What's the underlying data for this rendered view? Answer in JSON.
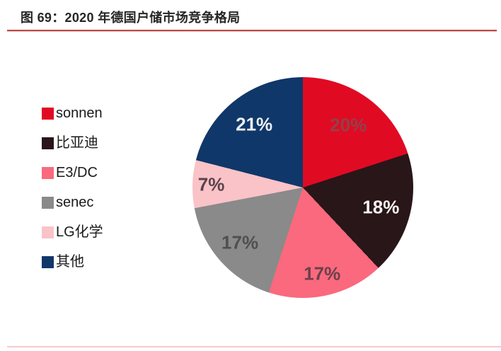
{
  "header": {
    "title": "图 69：2020 年德国户储市场竞争格局"
  },
  "colors": {
    "background": "#ffffff",
    "title_text": "#262626",
    "title_rule": "#bc4b46",
    "bottom_rule": "#f5caca",
    "legend_text": "#1a1a1a"
  },
  "chart_data": {
    "type": "pie",
    "title": "2020 年德国户储市场竞争格局",
    "start_angle_deg": 0,
    "direction": "clockwise",
    "legend_position": "left",
    "total": 100,
    "series": [
      {
        "name": "sonnen",
        "value": 20,
        "pct_label": "20%",
        "color": "#e10a23",
        "label_color": "#93404a"
      },
      {
        "name": "比亚迪",
        "value": 18,
        "pct_label": "18%",
        "color": "#281619",
        "label_color": "#f6f3f3"
      },
      {
        "name": "E3/DC",
        "value": 17,
        "pct_label": "17%",
        "color": "#fa697d",
        "label_color": "#6b4049"
      },
      {
        "name": "senec",
        "value": 17,
        "pct_label": "17%",
        "color": "#8a8a8a",
        "label_color": "#4f4f4f"
      },
      {
        "name": "LG化学",
        "value": 7,
        "pct_label": "7%",
        "color": "#f9c3c8",
        "label_color": "#59444a"
      },
      {
        "name": "其他",
        "value": 21,
        "pct_label": "21%",
        "color": "#103769",
        "label_color": "#eef0f4"
      }
    ]
  }
}
